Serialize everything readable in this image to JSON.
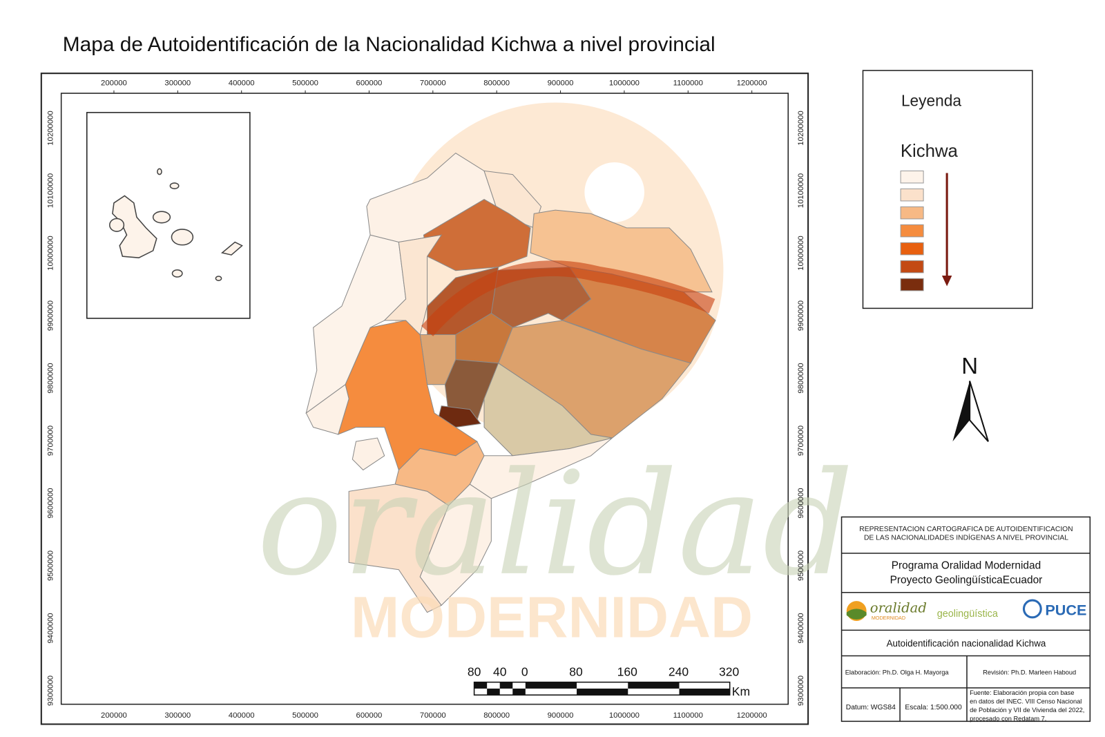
{
  "title": "Mapa de Autoidentificación de la Nacionalidad Kichwa a nivel provincial",
  "map": {
    "x_ticks": [
      200000,
      300000,
      400000,
      500000,
      600000,
      700000,
      800000,
      900000,
      1000000,
      1100000,
      1200000
    ],
    "y_ticks": [
      10200000,
      10100000,
      10000000,
      9900000,
      9800000,
      9700000,
      9600000,
      9500000,
      9400000,
      9300000
    ],
    "watermark": {
      "script": "oralidad",
      "word": "MODERNIDAD"
    },
    "north": "N",
    "scale_bar": {
      "labels": [
        80,
        40,
        0,
        80,
        160,
        240,
        320
      ],
      "unit": "Km"
    }
  },
  "legend": {
    "title": "Leyenda",
    "subtitle": "Kichwa",
    "colors": [
      "#fdf3ea",
      "#fbe1cb",
      "#f7b985",
      "#f58c3e",
      "#e8600f",
      "#c34a14",
      "#7a2d0e"
    ]
  },
  "info": {
    "header": [
      "REPRESENTACION CARTOGRAFICA DE AUTOIDENTIFICACION",
      "DE LAS NACIONALIDADES INDÍGENAS  A NIVEL PROVINCIAL"
    ],
    "program": [
      "Programa Oralidad Modernidad",
      "Proyecto GeolingüísticaEcuador"
    ],
    "logos": {
      "oralidad": "oralidad",
      "modernidad": "MODERNIDAD",
      "geo": "geolingüística",
      "puce": "PUCE"
    },
    "subject": "Autoidentificación nacionalidad Kichwa",
    "elaboracion": "Elaboración: Ph.D. Olga H. Mayorga",
    "revision": "Revisión: Ph.D. Marleen Haboud",
    "datum": "Datum: WGS84",
    "escala": "Escala: 1:500.000",
    "fuente": [
      "Fuente: Elaboración propia con base",
      "en datos del INEC. VIII Censo Nacional",
      "de Población y VII de Vivienda del 2022,",
      "procesado con Redatam 7."
    ]
  }
}
